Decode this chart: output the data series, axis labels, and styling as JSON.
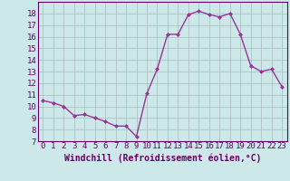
{
  "x": [
    0,
    1,
    2,
    3,
    4,
    5,
    6,
    7,
    8,
    9,
    10,
    11,
    12,
    13,
    14,
    15,
    16,
    17,
    18,
    19,
    20,
    21,
    22,
    23
  ],
  "y": [
    10.5,
    10.3,
    10.0,
    9.2,
    9.3,
    9.0,
    8.7,
    8.3,
    8.3,
    7.4,
    11.1,
    13.2,
    16.2,
    16.2,
    17.9,
    18.2,
    17.9,
    17.7,
    18.0,
    16.2,
    13.5,
    13.0,
    13.2,
    11.7
  ],
  "line_color": "#993399",
  "marker": "D",
  "marker_size": 2,
  "linewidth": 1.0,
  "xlabel": "Windchill (Refroidissement éolien,°C)",
  "xlim": [
    -0.5,
    23.5
  ],
  "ylim": [
    7,
    19
  ],
  "yticks": [
    7,
    8,
    9,
    10,
    11,
    12,
    13,
    14,
    15,
    16,
    17,
    18
  ],
  "xticks": [
    0,
    1,
    2,
    3,
    4,
    5,
    6,
    7,
    8,
    9,
    10,
    11,
    12,
    13,
    14,
    15,
    16,
    17,
    18,
    19,
    20,
    21,
    22,
    23
  ],
  "bg_color": "#cce8e8",
  "grid_color": "#aabbbb",
  "axis_color": "#660066",
  "tick_label_color": "#660066",
  "xlabel_color": "#660066",
  "xlabel_fontsize": 7,
  "tick_fontsize": 6.5
}
